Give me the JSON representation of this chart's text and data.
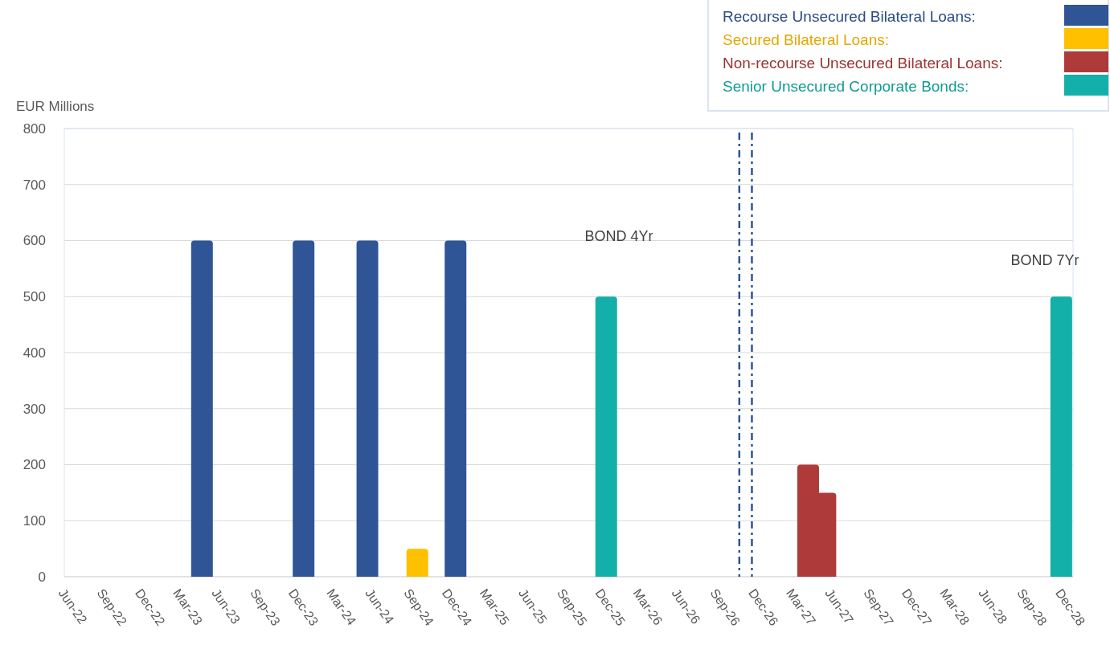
{
  "chart_data": {
    "type": "bar",
    "ylabel": "EUR Millions",
    "xlim": [
      "2022-06-01",
      "2028-12-29"
    ],
    "xticks": [
      {
        "value": "2022-06-01",
        "label": "Jun-22"
      },
      {
        "value": "2022-09-01",
        "label": "Sep-22"
      },
      {
        "value": "2022-12-01",
        "label": "Dec-22"
      },
      {
        "value": "2023-03-01",
        "label": "Mar-23"
      },
      {
        "value": "2023-06-01",
        "label": "Jun-23"
      },
      {
        "value": "2023-09-01",
        "label": "Sep-23"
      },
      {
        "value": "2023-12-01",
        "label": "Dec-23"
      },
      {
        "value": "2024-03-01",
        "label": "Mar-24"
      },
      {
        "value": "2024-06-01",
        "label": "Jun-24"
      },
      {
        "value": "2024-09-01",
        "label": "Sep-24"
      },
      {
        "value": "2024-12-01",
        "label": "Dec-24"
      },
      {
        "value": "2025-03-01",
        "label": "Mar-25"
      },
      {
        "value": "2025-06-01",
        "label": "Jun-25"
      },
      {
        "value": "2025-09-01",
        "label": "Sep-25"
      },
      {
        "value": "2025-12-01",
        "label": "Dec-25"
      },
      {
        "value": "2026-03-01",
        "label": "Mar-26"
      },
      {
        "value": "2026-06-01",
        "label": "Jun-26"
      },
      {
        "value": "2026-09-01",
        "label": "Sep-26"
      },
      {
        "value": "2026-12-01",
        "label": "Dec-26"
      },
      {
        "value": "2027-03-01",
        "label": "Mar-27"
      },
      {
        "value": "2027-06-01",
        "label": "Jun-27"
      },
      {
        "value": "2027-09-01",
        "label": "Sep-27"
      },
      {
        "value": "2027-12-01",
        "label": "Dec-27"
      },
      {
        "value": "2028-03-01",
        "label": "Mar-28"
      },
      {
        "value": "2028-06-01",
        "label": "Jun-28"
      },
      {
        "value": "2028-09-01",
        "label": "Sep-28"
      },
      {
        "value": "2028-12-01",
        "label": "Dec-28"
      }
    ],
    "ylim": [
      0,
      800
    ],
    "yticks": [
      0,
      100,
      200,
      300,
      400,
      500,
      600,
      700,
      800
    ],
    "grid": "y",
    "legend": "top right",
    "series": [
      {
        "name": "Recourse Unsecured Bilateral Loans:",
        "color": "#2f5597",
        "x": [
          "2023-04-25",
          "2023-12-23",
          "2024-05-23",
          "2024-12-19"
        ],
        "values": [
          600,
          600,
          600,
          600
        ]
      },
      {
        "name": "Secured Bilateral Loans:",
        "color": "#ffc000",
        "x": [
          "2024-09-19"
        ],
        "values": [
          50
        ]
      },
      {
        "name": "Non-recourse Unsecured Bilateral Loans:",
        "color": "#ae3a3a",
        "x": [
          "2027-05-19",
          "2027-04-08"
        ],
        "values": [
          150,
          200
        ]
      },
      {
        "name": "Senior Unsecured Corporate Bonds:",
        "color": "#12b0a8",
        "x": [
          "2025-12-13",
          "2028-12-01"
        ],
        "values": [
          500,
          500
        ]
      }
    ],
    "ref_lines": [
      {
        "axis": "x",
        "value": "2026-10-26",
        "label": null,
        "color": "#2f5597",
        "line_style": "dashed"
      },
      {
        "axis": "x",
        "value": "2026-11-25",
        "label": null,
        "color": "#2f5597",
        "line_style": "dashed"
      }
    ],
    "annotations": [
      "BOND 4Yr",
      "BOND 7Yr"
    ]
  }
}
